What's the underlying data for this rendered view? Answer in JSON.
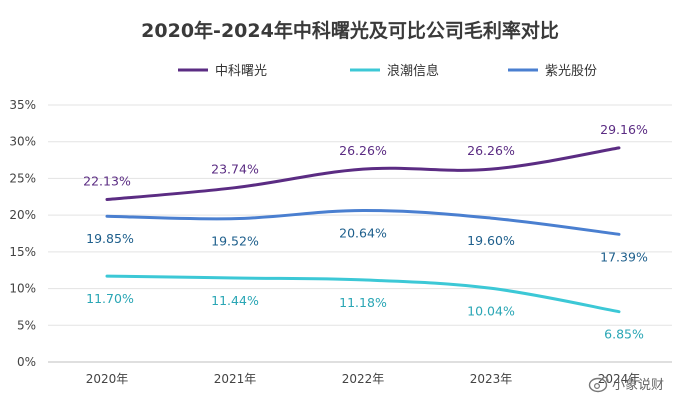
{
  "chart_data": {
    "type": "line",
    "title": "2020年-2024年中科曙光及可比公司毛利率对比",
    "categories": [
      "2020年",
      "2021年",
      "2022年",
      "2023年",
      "2024年"
    ],
    "ylim": [
      0,
      35
    ],
    "yticks": [
      "0%",
      "5%",
      "10%",
      "15%",
      "20%",
      "25%",
      "30%",
      "35%"
    ],
    "ytick_values": [
      0,
      5,
      10,
      15,
      20,
      25,
      30,
      35
    ],
    "grid": true,
    "legend_position": "top",
    "series": [
      {
        "name": "中科曙光",
        "color": "#5b2c83",
        "values": [
          22.13,
          23.74,
          26.26,
          26.26,
          29.16
        ],
        "labels": [
          "22.13%",
          "23.74%",
          "26.26%",
          "26.26%",
          "29.16%"
        ],
        "label_color": "#5b2c83",
        "label_position": "above"
      },
      {
        "name": "浪潮信息",
        "color": "#3cc8d6",
        "values": [
          11.7,
          11.44,
          11.18,
          10.04,
          6.85
        ],
        "labels": [
          "11.70%",
          "11.44%",
          "11.18%",
          "10.04%",
          "6.85%"
        ],
        "label_color": "#2aa6b5",
        "label_position": "below"
      },
      {
        "name": "紫光股份",
        "color": "#4a7fd0",
        "values": [
          19.85,
          19.52,
          20.64,
          19.6,
          17.39
        ],
        "labels": [
          "19.85%",
          "19.52%",
          "20.64%",
          "19.60%",
          "17.39%"
        ],
        "label_color": "#1e5f8c",
        "label_position": "below"
      }
    ]
  },
  "watermark": {
    "text": "小象说财",
    "icon": "weibo-icon"
  }
}
